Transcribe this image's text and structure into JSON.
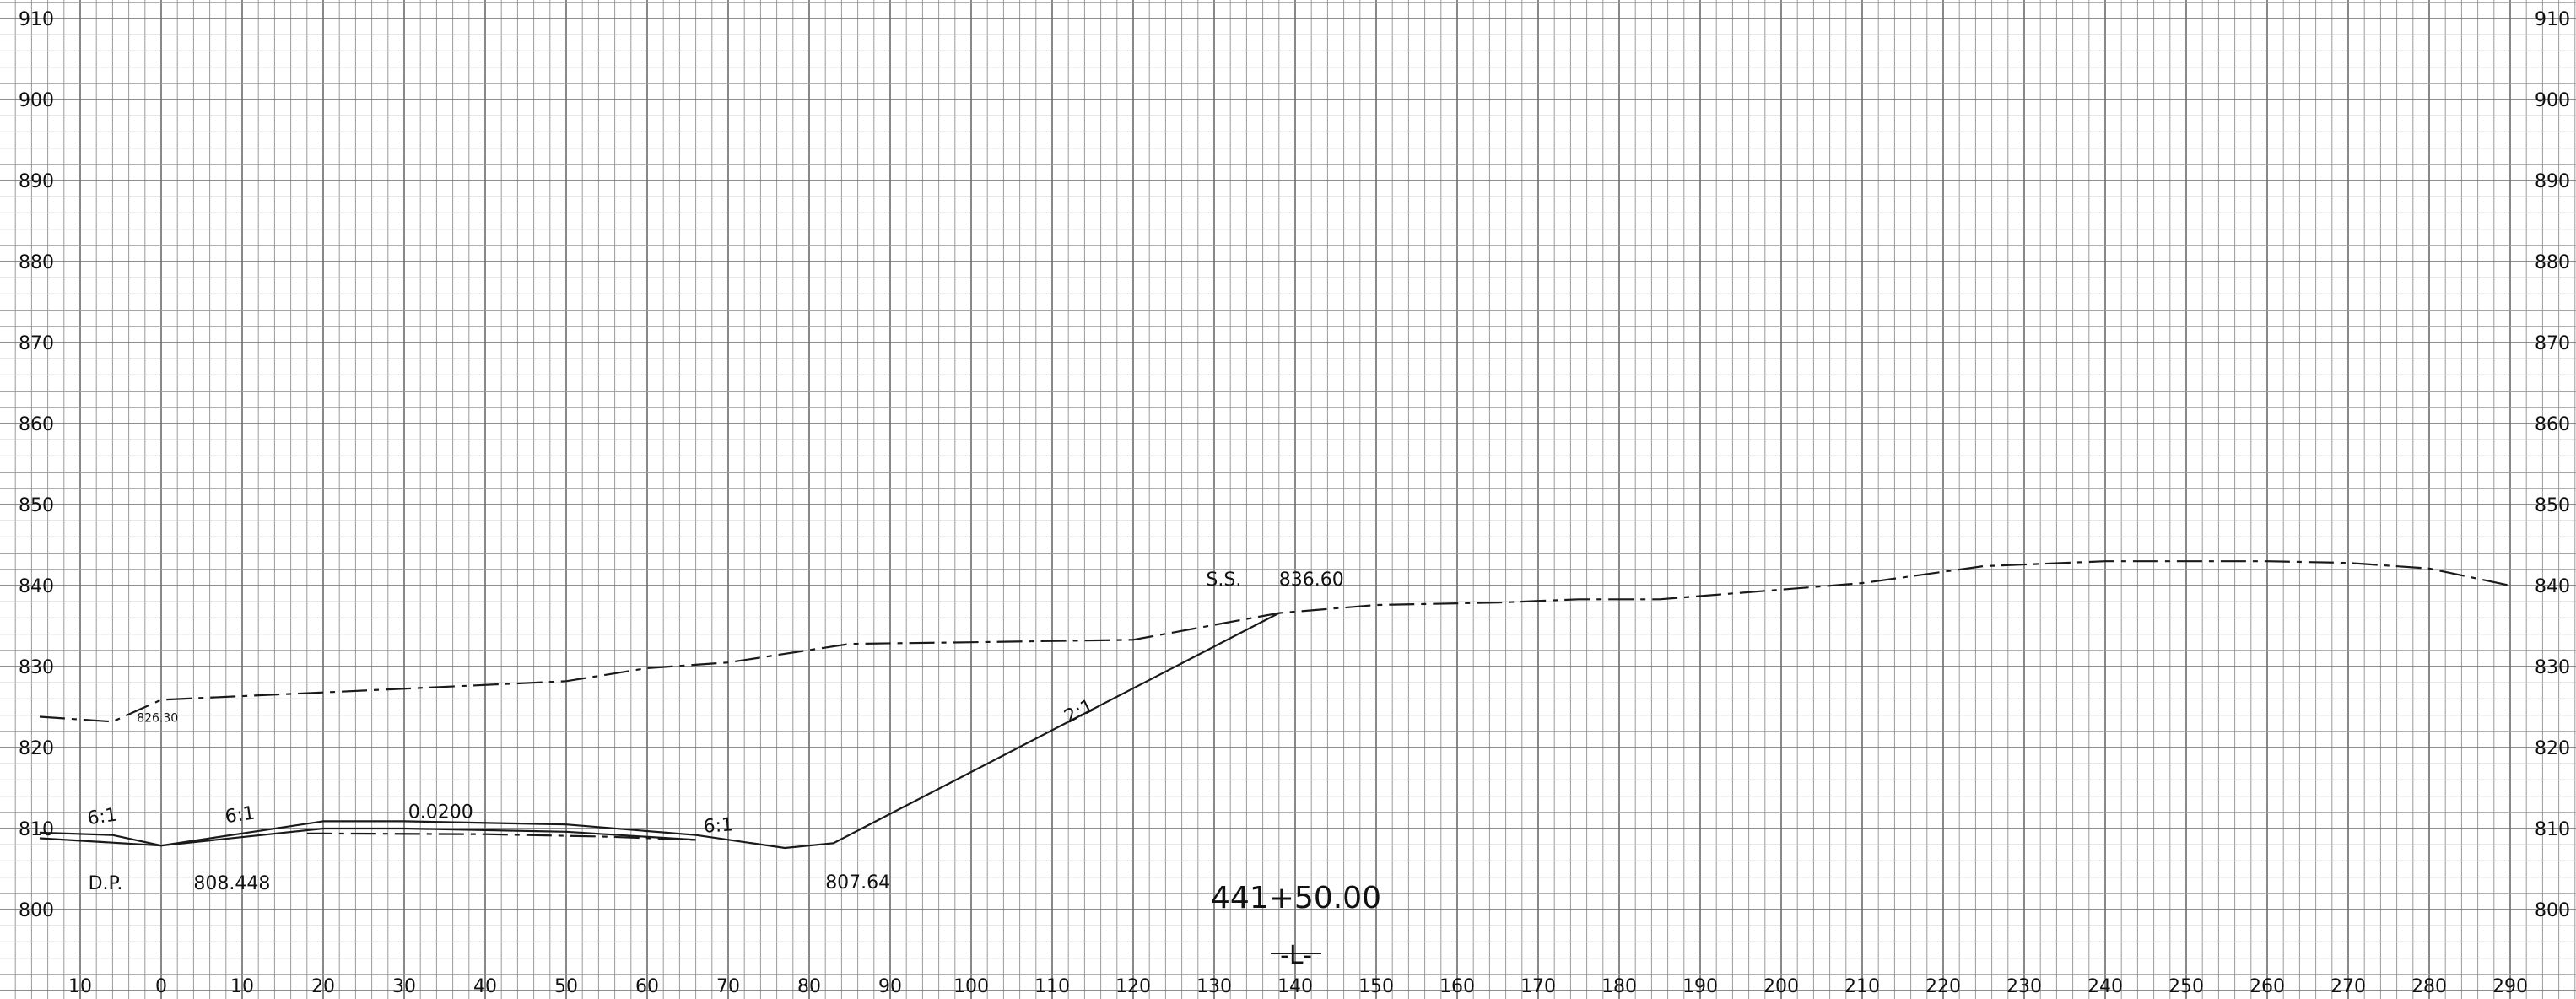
{
  "sheet": {
    "title": "441+50.00",
    "alignment_tag": "-L-"
  },
  "axes": {
    "x_ticks": [
      "10",
      "0",
      "10",
      "20",
      "30",
      "40",
      "50",
      "60",
      "70",
      "80",
      "90",
      "100",
      "110",
      "120",
      "130",
      "140",
      "150",
      "160",
      "170",
      "180",
      "190",
      "200",
      "210",
      "220",
      "230",
      "240",
      "250",
      "260",
      "270",
      "280",
      "290"
    ],
    "y_ticks": [
      "910",
      "900",
      "890",
      "880",
      "870",
      "860",
      "850",
      "840",
      "830",
      "820",
      "810",
      "800"
    ]
  },
  "chart_data": {
    "type": "line",
    "x_range": [
      -10,
      290
    ],
    "y_range": [
      797,
      911
    ],
    "series": [
      {
        "id": "existing-ground",
        "style": "dashed",
        "points": [
          [
            -15,
            823.8
          ],
          [
            -6,
            823.2
          ],
          [
            0,
            825.9
          ],
          [
            20,
            826.8
          ],
          [
            50,
            828.2
          ],
          [
            60,
            829.8
          ],
          [
            70,
            830.5
          ],
          [
            85,
            832.8
          ],
          [
            100,
            833.0
          ],
          [
            120,
            833.3
          ],
          [
            138,
            836.6
          ],
          [
            150,
            837.6
          ],
          [
            165,
            837.9
          ],
          [
            175,
            838.3
          ],
          [
            185,
            838.3
          ],
          [
            195,
            839.1
          ],
          [
            210,
            840.3
          ],
          [
            225,
            842.4
          ],
          [
            240,
            843.0
          ],
          [
            260,
            843.0
          ],
          [
            270,
            842.8
          ],
          [
            280,
            842.1
          ],
          [
            290,
            840.0
          ]
        ]
      },
      {
        "id": "proposed-section",
        "style": "solid",
        "points": [
          [
            -15,
            809.5
          ],
          [
            -6,
            809.2
          ],
          [
            0,
            807.9
          ],
          [
            20,
            810.9
          ],
          [
            30,
            810.9
          ],
          [
            50,
            810.5
          ],
          [
            66,
            809.2
          ],
          [
            77,
            807.6
          ],
          [
            83,
            808.2
          ],
          [
            138,
            836.6
          ]
        ]
      },
      {
        "id": "subgrade",
        "style": "solid",
        "points": [
          [
            -15,
            808.8
          ],
          [
            0,
            807.9
          ],
          [
            20,
            810.0
          ],
          [
            30,
            810.0
          ],
          [
            50,
            809.6
          ],
          [
            66,
            808.6
          ]
        ]
      },
      {
        "id": "existing-low-dashed",
        "style": "dashed",
        "points": [
          [
            18,
            809.4
          ],
          [
            40,
            809.3
          ],
          [
            55,
            809.0
          ],
          [
            66,
            808.6
          ]
        ]
      }
    ],
    "annotations": [
      {
        "text": "S.S.",
        "x": 129,
        "y": 840
      },
      {
        "text": "836.60",
        "x": 138,
        "y": 840
      },
      {
        "text": "826.30",
        "x": -3,
        "y": 823.2
      },
      {
        "text": "2:1",
        "x": 112,
        "y": 823,
        "rotate": -27
      },
      {
        "text": "6:1",
        "x": -9,
        "y": 810.5,
        "rotate": -8
      },
      {
        "text": "6:1",
        "x": 8,
        "y": 810.7,
        "rotate": -8
      },
      {
        "text": "0.0200",
        "x": 30.5,
        "y": 811.3
      },
      {
        "text": "6:1",
        "x": 67,
        "y": 809.5,
        "rotate": -4
      },
      {
        "text": "D.P.",
        "x": -9,
        "y": 802.5
      },
      {
        "text": "808.448",
        "x": 4,
        "y": 802.5
      },
      {
        "text": "807.64",
        "x": 82,
        "y": 802.6
      }
    ]
  }
}
